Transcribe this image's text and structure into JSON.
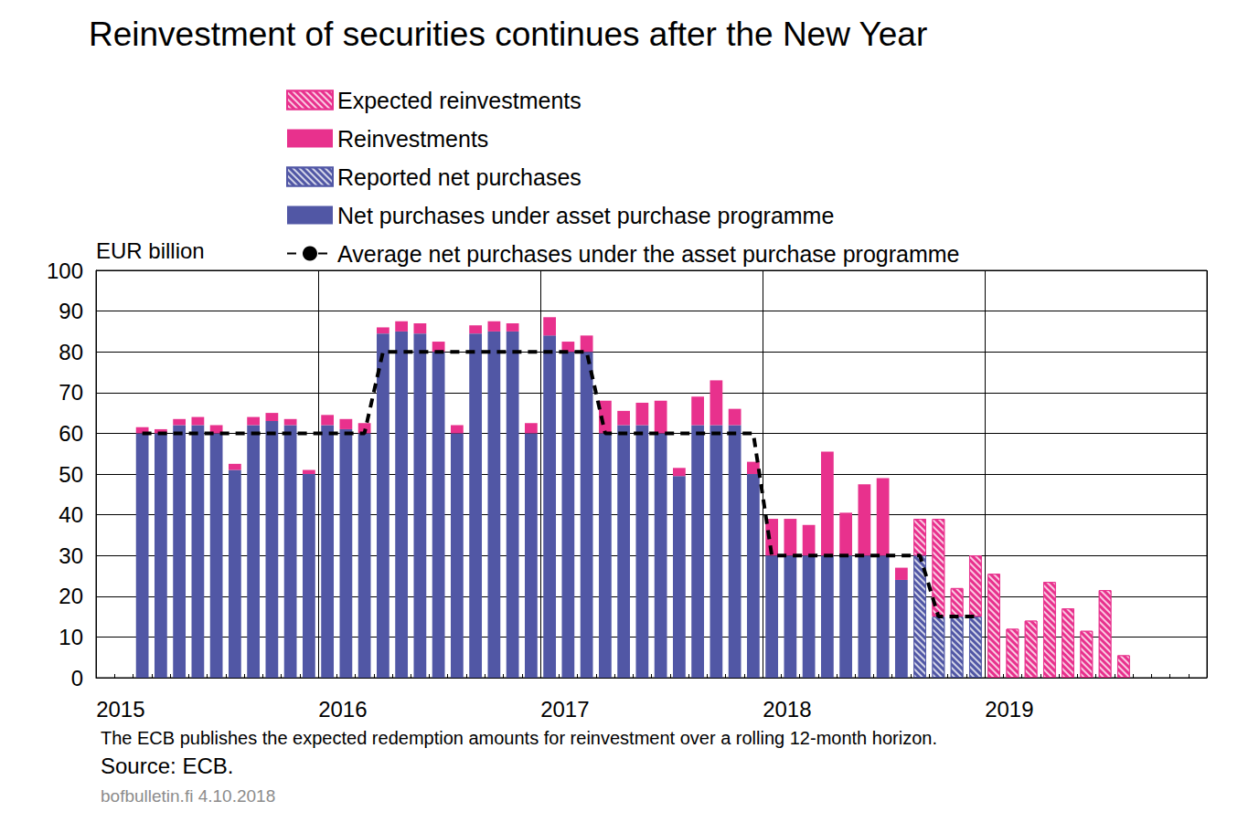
{
  "chart_data": {
    "type": "bar",
    "title": "Reinvestment of securities continues after the New Year",
    "y_label": "EUR billion",
    "footnote": "The ECB publishes the expected redemption amounts for reinvestment over a rolling 12-month horizon.",
    "source": "Source: ECB.",
    "credit": "bofbulletin.fi 4.10.2018",
    "stacked": true,
    "grid": true,
    "legend": "top",
    "ylim": [
      0,
      100
    ],
    "yticks": [
      0,
      10,
      20,
      30,
      40,
      50,
      60,
      70,
      80,
      90,
      100
    ],
    "categories": [
      "2015",
      null,
      null,
      null,
      null,
      null,
      null,
      null,
      null,
      null,
      null,
      null,
      "2016",
      null,
      null,
      null,
      null,
      null,
      null,
      null,
      null,
      null,
      null,
      null,
      "2017",
      null,
      null,
      null,
      null,
      null,
      null,
      null,
      null,
      null,
      null,
      null,
      "2018",
      null,
      null,
      null,
      null,
      null,
      null,
      null,
      null,
      null,
      null,
      null,
      "2019",
      null,
      null,
      null,
      null,
      null,
      null,
      null,
      null,
      null,
      null,
      null
    ],
    "series": [
      {
        "name": "Net purchases under asset purchase programme",
        "type": "bar",
        "color": "#5157a5",
        "marker": "solid",
        "values": [
          null,
          null,
          60,
          60,
          62,
          62,
          60,
          51,
          62,
          63,
          62,
          50,
          62,
          61,
          60,
          84.5,
          85,
          84.5,
          80,
          60,
          84.5,
          85,
          85,
          60,
          84,
          80,
          80,
          60,
          62,
          62,
          60,
          49.5,
          62,
          62,
          62,
          50,
          30,
          30,
          30,
          30,
          30,
          30,
          30,
          24,
          null,
          null,
          null,
          null,
          null,
          null,
          null,
          null,
          null,
          null,
          null,
          null,
          null,
          null,
          null,
          null
        ]
      },
      {
        "name": "Reported net purchases",
        "type": "bar",
        "color": "#5157a5",
        "marker": "hatched",
        "values": [
          null,
          null,
          null,
          null,
          null,
          null,
          null,
          null,
          null,
          null,
          null,
          null,
          null,
          null,
          null,
          null,
          null,
          null,
          null,
          null,
          null,
          null,
          null,
          null,
          null,
          null,
          null,
          null,
          null,
          null,
          null,
          null,
          null,
          null,
          null,
          null,
          null,
          null,
          null,
          null,
          null,
          null,
          null,
          null,
          30,
          15,
          15,
          15,
          null,
          null,
          null,
          null,
          null,
          null,
          null,
          null,
          null,
          null,
          null,
          null
        ]
      },
      {
        "name": "Reinvestments",
        "type": "bar",
        "color": "#e8318d",
        "marker": "solid",
        "values": [
          null,
          null,
          1.5,
          1,
          1.5,
          2,
          2,
          1.5,
          2,
          2,
          1.5,
          1,
          2.5,
          2.5,
          2.5,
          1.5,
          2.5,
          2.5,
          2.5,
          2,
          2,
          2.5,
          2,
          2.5,
          4.5,
          2.5,
          4,
          8,
          3.5,
          5.5,
          8,
          2,
          7,
          11,
          4,
          3,
          9,
          9,
          7.5,
          25.5,
          10.5,
          17.5,
          19,
          3,
          null,
          null,
          null,
          null,
          null,
          null,
          null,
          null,
          null,
          null,
          null,
          null,
          null,
          null,
          null,
          null
        ]
      },
      {
        "name": "Expected reinvestments",
        "type": "bar",
        "color": "#e8318d",
        "marker": "hatched",
        "values": [
          null,
          null,
          null,
          null,
          null,
          null,
          null,
          null,
          null,
          null,
          null,
          null,
          null,
          null,
          null,
          null,
          null,
          null,
          null,
          null,
          null,
          null,
          null,
          null,
          null,
          null,
          null,
          null,
          null,
          null,
          null,
          null,
          null,
          null,
          null,
          null,
          null,
          null,
          null,
          null,
          null,
          null,
          null,
          null,
          9,
          24,
          7,
          15,
          25.5,
          12,
          14,
          23.5,
          17,
          11.5,
          21.5,
          5.5,
          null,
          null,
          null,
          null
        ]
      },
      {
        "name": "Average net purchases under the asset purchase programme",
        "type": "line",
        "color": "#000000",
        "line_style": "dashed",
        "values": [
          null,
          null,
          60,
          60,
          60,
          60,
          60,
          60,
          60,
          60,
          60,
          60,
          60,
          60,
          60,
          80,
          80,
          80,
          80,
          80,
          80,
          80,
          80,
          80,
          80,
          80,
          80,
          60,
          60,
          60,
          60,
          60,
          60,
          60,
          60,
          60,
          30,
          30,
          30,
          30,
          30,
          30,
          30,
          30,
          30,
          15,
          15,
          15,
          null,
          null,
          null,
          null,
          null,
          null,
          null,
          null,
          null,
          null,
          null,
          null
        ]
      }
    ]
  }
}
